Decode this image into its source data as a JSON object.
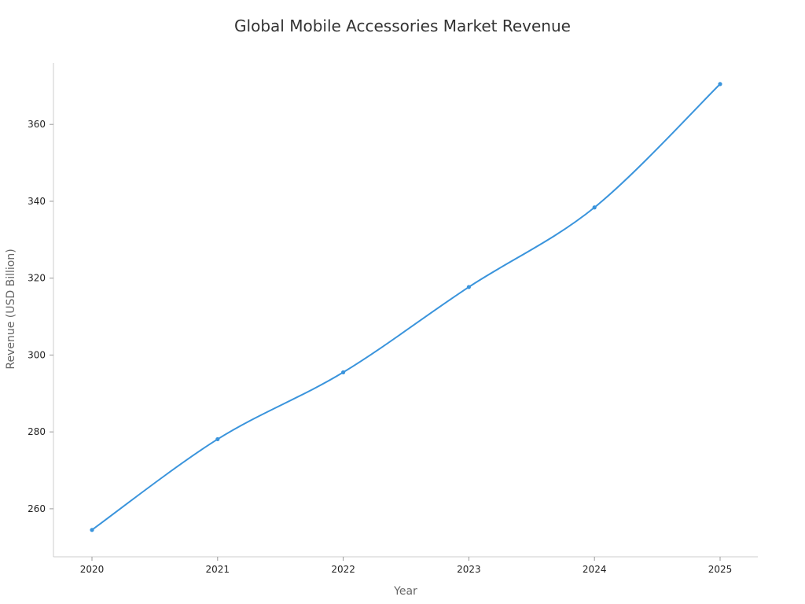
{
  "chart_data": {
    "type": "line",
    "title": "Global Mobile Accessories Market Revenue",
    "xlabel": "Year",
    "ylabel": "Revenue (USD Billion)",
    "x": [
      "2020",
      "2021",
      "2022",
      "2023",
      "2024",
      "2025"
    ],
    "series": [
      {
        "values": [
          254.5,
          278.1,
          295.5,
          317.7,
          338.4,
          370.5
        ],
        "color": "#3a94dc"
      }
    ],
    "ylim": [
      247.5,
      376
    ],
    "yticks": [
      260,
      280,
      300,
      320,
      340,
      360
    ],
    "grid": false,
    "legend": "none"
  }
}
